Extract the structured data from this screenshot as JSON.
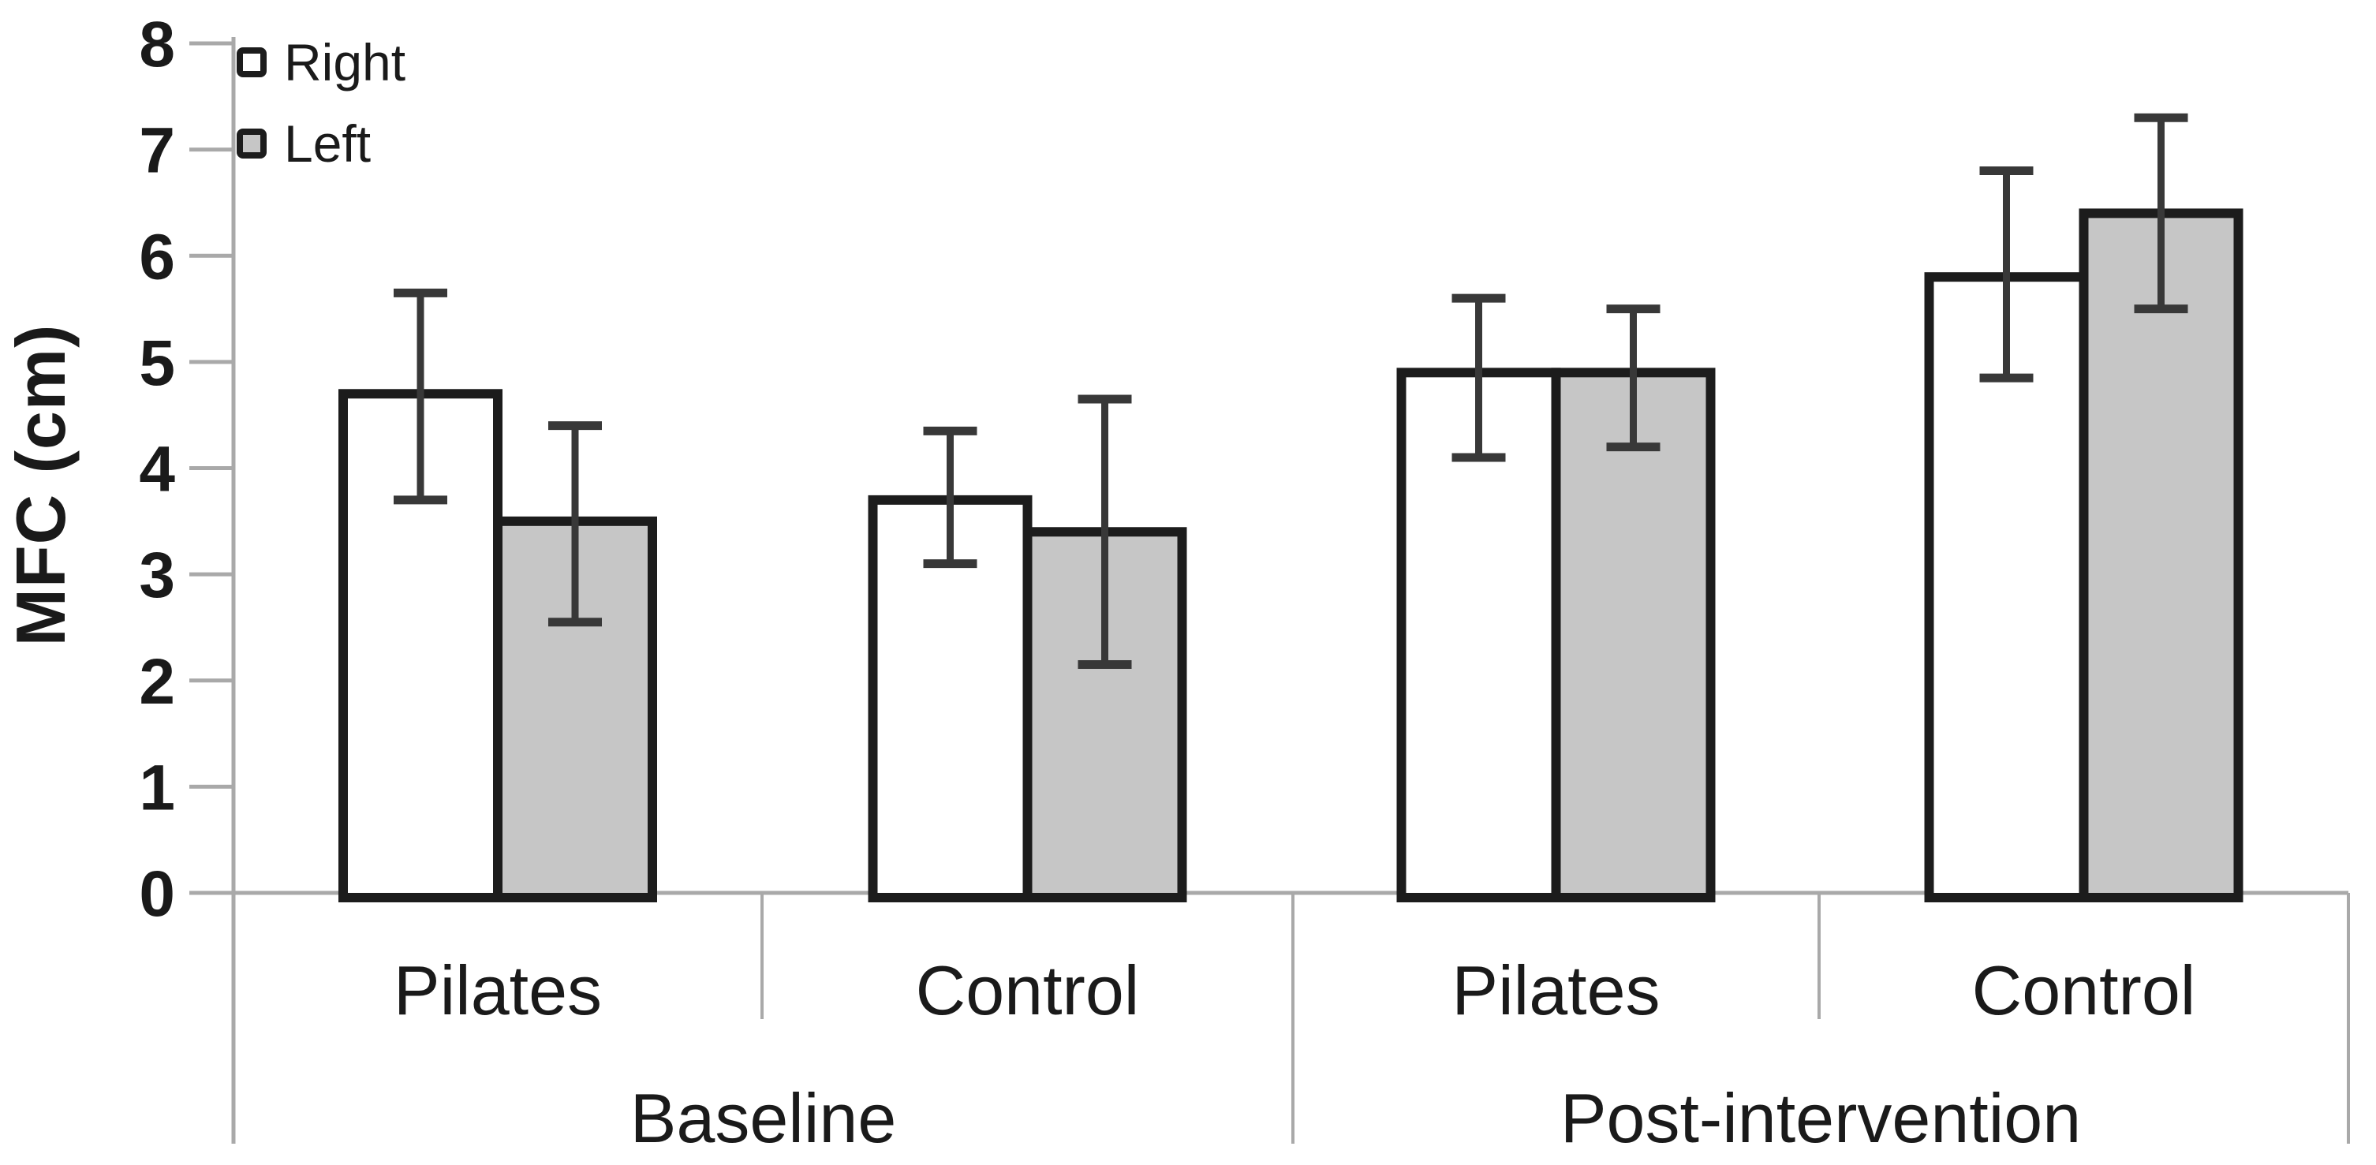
{
  "chart_data": {
    "type": "bar",
    "title": "",
    "xlabel": "",
    "ylabel": "MFC (cm)",
    "ylim": [
      0,
      8
    ],
    "ytick_labels": [
      "0",
      "1",
      "2",
      "3",
      "4",
      "5",
      "6",
      "7",
      "8"
    ],
    "grid": false,
    "legend_position": "top-left",
    "group_labels": [
      "Baseline",
      "Post-intervention"
    ],
    "categories": [
      "Pilates",
      "Control",
      "Pilates",
      "Control"
    ],
    "series": [
      {
        "name": "Right",
        "fill": "#ffffff",
        "values": [
          4.7,
          3.7,
          4.9,
          5.8
        ],
        "error_caps_low": [
          3.7,
          3.1,
          4.1,
          4.85
        ],
        "error_caps_high": [
          5.65,
          4.35,
          5.6,
          6.8
        ]
      },
      {
        "name": "Left",
        "fill": "#c6c6c6",
        "values": [
          3.5,
          3.4,
          4.9,
          6.4
        ],
        "error_caps_low": [
          2.55,
          2.15,
          4.2,
          5.5
        ],
        "error_caps_high": [
          4.4,
          4.65,
          5.5,
          7.3
        ]
      }
    ],
    "colors": {
      "bar_border": "#1c1c1c",
      "error_bar": "#383838",
      "axis": "#a9a9a9",
      "text": "#1a1a1a"
    }
  }
}
